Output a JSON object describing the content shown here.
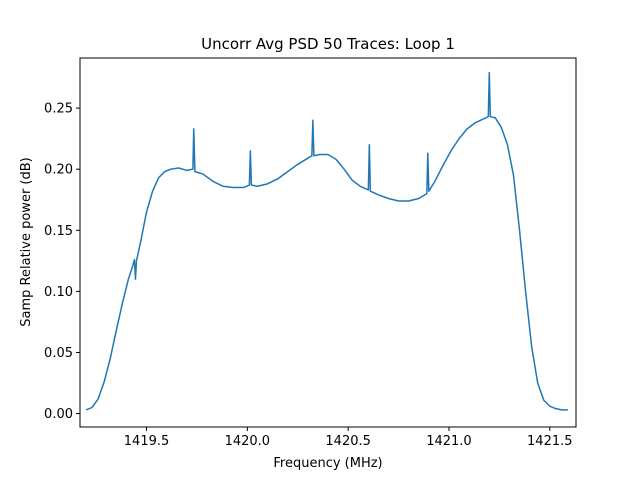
{
  "chart_data": {
    "type": "line",
    "title": "Uncorr Avg PSD 50 Traces: Loop 1",
    "xlabel": "Frequency (MHz)",
    "ylabel": "Samp Relative power (dB)",
    "xlim": [
      1419.17,
      1421.63
    ],
    "ylim": [
      -0.011,
      0.291
    ],
    "grid": false,
    "line_color": "#1f77b4",
    "xticks": [
      {
        "value": 1419.5,
        "label": "1419.5"
      },
      {
        "value": 1420.0,
        "label": "1420.0"
      },
      {
        "value": 1420.5,
        "label": "1420.5"
      },
      {
        "value": 1421.0,
        "label": "1421.0"
      },
      {
        "value": 1421.5,
        "label": "1421.5"
      }
    ],
    "yticks": [
      {
        "value": 0.0,
        "label": "0.00"
      },
      {
        "value": 0.05,
        "label": "0.05"
      },
      {
        "value": 0.1,
        "label": "0.10"
      },
      {
        "value": 0.15,
        "label": "0.15"
      },
      {
        "value": 0.2,
        "label": "0.20"
      },
      {
        "value": 0.25,
        "label": "0.25"
      }
    ],
    "series": [
      {
        "x": [
          1419.2,
          1419.23,
          1419.26,
          1419.29,
          1419.32,
          1419.35,
          1419.38,
          1419.41,
          1419.43,
          1419.44,
          1419.445,
          1419.45,
          1419.47,
          1419.5,
          1419.53,
          1419.56,
          1419.59,
          1419.62,
          1419.66,
          1419.7,
          1419.73,
          1419.734,
          1419.74,
          1419.78,
          1419.83,
          1419.88,
          1419.93,
          1419.98,
          1420.01,
          1420.015,
          1420.02,
          1420.05,
          1420.1,
          1420.15,
          1420.2,
          1420.25,
          1420.3,
          1420.32,
          1420.325,
          1420.33,
          1420.36,
          1420.4,
          1420.44,
          1420.48,
          1420.52,
          1420.56,
          1420.6,
          1420.605,
          1420.61,
          1420.65,
          1420.7,
          1420.75,
          1420.8,
          1420.85,
          1420.89,
          1420.895,
          1420.9,
          1420.93,
          1420.97,
          1421.01,
          1421.05,
          1421.09,
          1421.13,
          1421.17,
          1421.195,
          1421.2,
          1421.205,
          1421.23,
          1421.26,
          1421.29,
          1421.32,
          1421.35,
          1421.38,
          1421.41,
          1421.44,
          1421.47,
          1421.5,
          1421.53,
          1421.56,
          1421.59
        ],
        "y": [
          0.003,
          0.005,
          0.012,
          0.026,
          0.045,
          0.068,
          0.09,
          0.11,
          0.12,
          0.126,
          0.11,
          0.125,
          0.14,
          0.165,
          0.182,
          0.193,
          0.198,
          0.2,
          0.201,
          0.199,
          0.2,
          0.233,
          0.198,
          0.196,
          0.19,
          0.186,
          0.185,
          0.185,
          0.187,
          0.215,
          0.187,
          0.186,
          0.188,
          0.192,
          0.198,
          0.204,
          0.209,
          0.211,
          0.24,
          0.211,
          0.212,
          0.212,
          0.208,
          0.2,
          0.191,
          0.186,
          0.183,
          0.22,
          0.182,
          0.179,
          0.176,
          0.174,
          0.174,
          0.176,
          0.18,
          0.213,
          0.182,
          0.19,
          0.203,
          0.215,
          0.225,
          0.233,
          0.238,
          0.241,
          0.243,
          0.279,
          0.243,
          0.242,
          0.234,
          0.22,
          0.195,
          0.15,
          0.1,
          0.055,
          0.025,
          0.011,
          0.006,
          0.004,
          0.003,
          0.003
        ]
      }
    ]
  }
}
